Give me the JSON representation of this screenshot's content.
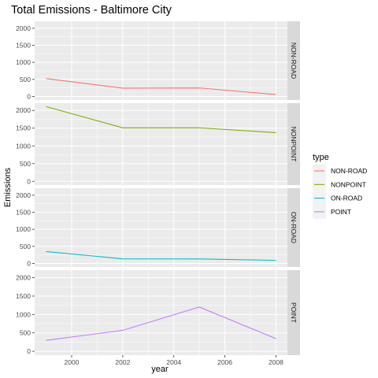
{
  "chart_data": {
    "type": "line",
    "title": "Total Emissions - Baltimore City",
    "xlabel": "year",
    "ylabel": "Emissions",
    "xlim": [
      1998.55,
      2008.45
    ],
    "ylim": [
      -105,
      2205
    ],
    "x_ticks": [
      2000,
      2002,
      2004,
      2006,
      2008
    ],
    "x_tick_labels": [
      "2000",
      "2002",
      "2004",
      "2006",
      "2008"
    ],
    "y_ticks": [
      0,
      500,
      1000,
      1500,
      2000
    ],
    "y_tick_labels": [
      "0",
      "500",
      "1000",
      "1500",
      "2000"
    ],
    "grid": true,
    "facets": "rows by type, shared axes",
    "legend": {
      "title": "type",
      "placement": "right"
    },
    "x": [
      1999,
      2002,
      2005,
      2008
    ],
    "series": [
      {
        "name": "NON-ROAD",
        "color": "#F8766D",
        "values": [
          522.94,
          242.63,
          248.93,
          55.82
        ]
      },
      {
        "name": "NONPOINT",
        "color": "#7CAE00",
        "values": [
          2107.63,
          1509.5,
          1509.5,
          1373.21
        ]
      },
      {
        "name": "ON-ROAD",
        "color": "#00BFC4",
        "values": [
          346.82,
          134.31,
          130.43,
          88.28
        ]
      },
      {
        "name": "POINT",
        "color": "#C77CFF",
        "values": [
          296.8,
          569.26,
          1202.49,
          344.98
        ]
      }
    ]
  }
}
